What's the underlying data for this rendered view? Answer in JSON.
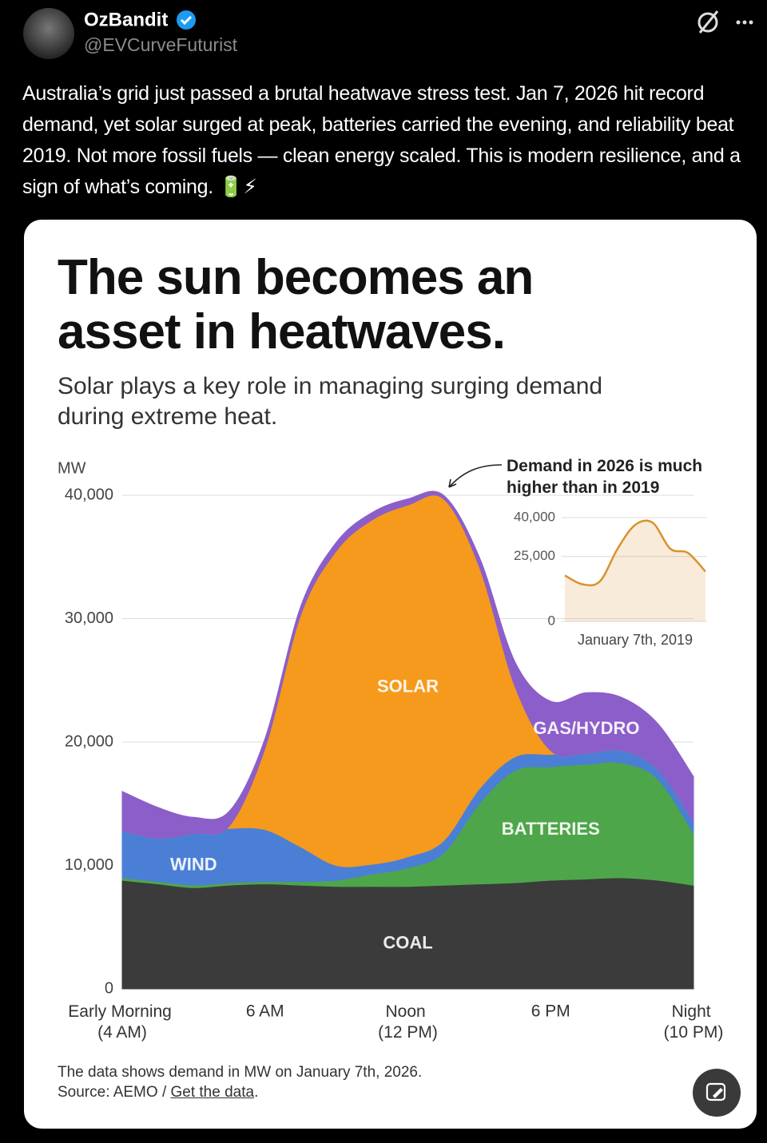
{
  "post": {
    "author": "OzBandit",
    "handle": "@EVCurveFuturist",
    "text": "Australia’s grid just passed a brutal heatwave stress test. Jan 7, 2026 hit record demand, yet solar surged at peak, batteries carried the evening, and reliability beat 2019. Not more fossil fuels — clean energy scaled. This is modern resilience, and a sign of what’s coming. 🔋⚡"
  },
  "chart_data": [
    {
      "type": "area",
      "stacked": true,
      "title": "The sun becomes an asset in heatwaves.",
      "subtitle": "Solar plays a key role in managing surging demand during extreme heat.",
      "ylabel": "MW",
      "categories": [
        "Early Morning (4 AM)",
        null,
        null,
        null,
        "6 AM",
        null,
        null,
        null,
        "Noon (12 PM)",
        null,
        null,
        null,
        "6 PM",
        null,
        null,
        null,
        "Night (10 PM)"
      ],
      "series": [
        {
          "name": "COAL",
          "color": "#3b3b3b",
          "values": [
            8800,
            8500,
            8200,
            8400,
            8500,
            8400,
            8300,
            8300,
            8300,
            8400,
            8500,
            8600,
            8800,
            8900,
            9000,
            8800,
            8400
          ]
        },
        {
          "name": "BATTERIES",
          "color": "#4ea64a",
          "values": [
            200,
            200,
            200,
            200,
            200,
            300,
            500,
            1000,
            1500,
            2600,
            6500,
            9100,
            9200,
            9300,
            9300,
            8200,
            4200
          ]
        },
        {
          "name": "WIND",
          "color": "#4b7fd6",
          "values": [
            3800,
            3500,
            4200,
            4400,
            4200,
            2800,
            1200,
            800,
            900,
            1000,
            1200,
            1100,
            1000,
            900,
            1000,
            800,
            1000
          ]
        },
        {
          "name": "SOLAR",
          "color": "#f59a1c",
          "values": [
            0,
            0,
            0,
            200,
            6600,
            18800,
            25500,
            27900,
            28500,
            27700,
            18000,
            5700,
            300,
            0,
            0,
            0,
            0
          ]
        },
        {
          "name": "GAS/HYDRO",
          "color": "#8c5ec9",
          "values": [
            3200,
            2500,
            1300,
            1200,
            800,
            700,
            700,
            600,
            500,
            300,
            800,
            2000,
            4000,
            4900,
            4300,
            3700,
            3600
          ]
        }
      ],
      "ylim": [
        0,
        40000
      ],
      "yticks": [
        0,
        {
          "value": 10000,
          "label": "10,000"
        },
        {
          "value": 20000,
          "label": "20,000"
        },
        {
          "value": 30000,
          "label": "30,000"
        },
        {
          "value": 40000,
          "label": "40,000"
        }
      ],
      "grid": true,
      "note": "The data shows demand in MW on January 7th, 2026.",
      "source": [
        "Source: AEMO / ",
        "Get the data",
        "."
      ]
    },
    {
      "type": "line",
      "title": "Demand in 2026 is much higher than in 2019",
      "xlabel": "January 7th, 2019",
      "values": [
        17700,
        14300,
        15500,
        28000,
        37200,
        38000,
        28000,
        26400,
        19200
      ],
      "color": "#d9912f",
      "ylim": [
        0,
        40000
      ],
      "yticks": [
        0,
        {
          "value": 25000,
          "label": "25,000"
        },
        {
          "value": 40000,
          "label": "40,000"
        }
      ],
      "grid": true
    }
  ]
}
